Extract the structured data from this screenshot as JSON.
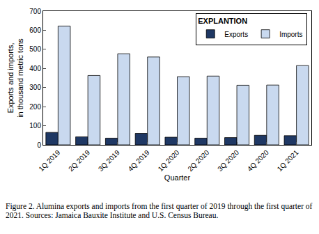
{
  "chart_data": {
    "type": "bar",
    "categories": [
      "1Q 2019",
      "2Q 2019",
      "3Q 2019",
      "4Q 2019",
      "1Q 2020",
      "2Q 2020",
      "3Q 2020",
      "4Q 2020",
      "1Q 2021"
    ],
    "series": [
      {
        "name": "Exports",
        "color": "#1f3864",
        "values": [
          65,
          42,
          35,
          60,
          40,
          35,
          38,
          50,
          48
        ]
      },
      {
        "name": "Imports",
        "color": "#c9d9ef",
        "values": [
          622,
          363,
          477,
          460,
          357,
          360,
          312,
          313,
          415
        ]
      }
    ],
    "x_label": "Quarter",
    "y_label": "Exports and imports, in thousand metric tons",
    "legend_title": "EXPLANTION",
    "legend": "upper right",
    "caption": "Figure 2. Alumina exports and imports from the first quarter of 2019 through the first quarter of 2021. Sources: Jamaica Bauxite Institute and U.S. Census Bureau.",
    "ylim": [
      0,
      700
    ],
    "yticks": [
      0,
      100,
      200,
      300,
      400,
      500,
      600,
      700
    ],
    "grid": false
  }
}
